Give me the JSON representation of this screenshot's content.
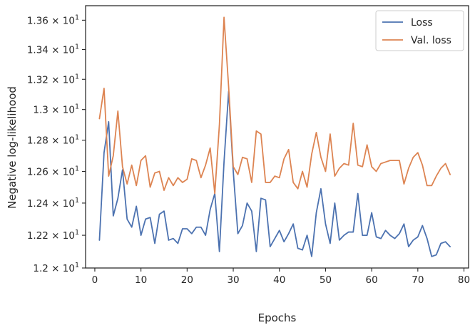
{
  "chart_data": {
    "type": "line",
    "xlabel": "Epochs",
    "ylabel": "Negative log-likelihood",
    "xlim": [
      -2,
      81
    ],
    "ylim": [
      12.0,
      13.7
    ],
    "y_scale": "log",
    "grid": false,
    "legend_position": "top-right",
    "x_ticks": [
      {
        "value": 0,
        "label": "0"
      },
      {
        "value": 10,
        "label": "10"
      },
      {
        "value": 20,
        "label": "20"
      },
      {
        "value": 30,
        "label": "30"
      },
      {
        "value": 40,
        "label": "40"
      },
      {
        "value": 50,
        "label": "50"
      },
      {
        "value": 60,
        "label": "60"
      },
      {
        "value": 70,
        "label": "70"
      },
      {
        "value": 80,
        "label": "80"
      }
    ],
    "y_ticks": [
      {
        "value": 12.0,
        "mantissa": "1.2"
      },
      {
        "value": 12.2,
        "mantissa": "1.22"
      },
      {
        "value": 12.4,
        "mantissa": "1.24"
      },
      {
        "value": 12.6,
        "mantissa": "1.26"
      },
      {
        "value": 12.8,
        "mantissa": "1.28"
      },
      {
        "value": 13.0,
        "mantissa": "1.3"
      },
      {
        "value": 13.2,
        "mantissa": "1.32"
      },
      {
        "value": 13.4,
        "mantissa": "1.34"
      },
      {
        "value": 13.6,
        "mantissa": "1.36"
      }
    ],
    "y_tick_base": "10",
    "y_tick_exponent": "1",
    "series": [
      {
        "name": "Loss",
        "color": "#4c72b0",
        "x": [
          1,
          2,
          3,
          4,
          5,
          6,
          7,
          8,
          9,
          10,
          11,
          12,
          13,
          14,
          15,
          16,
          17,
          18,
          19,
          20,
          21,
          22,
          23,
          24,
          25,
          26,
          27,
          28,
          29,
          30,
          31,
          32,
          33,
          34,
          35,
          36,
          37,
          38,
          39,
          40,
          41,
          42,
          43,
          44,
          45,
          46,
          47,
          48,
          49,
          50,
          51,
          52,
          53,
          54,
          55,
          56,
          57,
          58,
          59,
          60,
          61,
          62,
          63,
          64,
          65,
          66,
          67,
          68,
          69,
          70,
          71,
          72,
          73,
          74,
          75,
          76,
          77
        ],
        "y": [
          12.17,
          12.72,
          12.92,
          12.32,
          12.43,
          12.61,
          12.3,
          12.25,
          12.38,
          12.2,
          12.3,
          12.31,
          12.15,
          12.33,
          12.35,
          12.17,
          12.18,
          12.15,
          12.24,
          12.24,
          12.21,
          12.25,
          12.25,
          12.2,
          12.36,
          12.46,
          12.1,
          12.66,
          13.12,
          12.6,
          12.21,
          12.26,
          12.4,
          12.35,
          12.1,
          12.43,
          12.42,
          12.13,
          12.18,
          12.23,
          12.16,
          12.21,
          12.27,
          12.12,
          12.11,
          12.2,
          12.07,
          12.34,
          12.49,
          12.27,
          12.15,
          12.4,
          12.17,
          12.2,
          12.22,
          12.22,
          12.46,
          12.2,
          12.2,
          12.34,
          12.19,
          12.18,
          12.23,
          12.2,
          12.18,
          12.21,
          12.27,
          12.13,
          12.17,
          12.19,
          12.26,
          12.18,
          12.07,
          12.08,
          12.15,
          12.16,
          12.13
        ]
      },
      {
        "name": "Val. loss",
        "color": "#dd8452",
        "x": [
          1,
          2,
          3,
          4,
          5,
          6,
          7,
          8,
          9,
          10,
          11,
          12,
          13,
          14,
          15,
          16,
          17,
          18,
          19,
          20,
          21,
          22,
          23,
          24,
          25,
          26,
          27,
          28,
          29,
          30,
          31,
          32,
          33,
          34,
          35,
          36,
          37,
          38,
          39,
          40,
          41,
          42,
          43,
          44,
          45,
          46,
          47,
          48,
          49,
          50,
          51,
          52,
          53,
          54,
          55,
          56,
          57,
          58,
          59,
          60,
          61,
          62,
          63,
          64,
          65,
          66,
          67,
          68,
          69,
          70,
          71,
          72,
          73,
          74,
          75,
          76,
          77
        ],
        "y": [
          12.94,
          13.14,
          12.57,
          12.7,
          12.99,
          12.63,
          12.52,
          12.64,
          12.51,
          12.67,
          12.7,
          12.5,
          12.59,
          12.6,
          12.48,
          12.56,
          12.51,
          12.56,
          12.53,
          12.55,
          12.68,
          12.67,
          12.56,
          12.64,
          12.75,
          12.46,
          12.9,
          13.62,
          13.15,
          12.63,
          12.58,
          12.69,
          12.68,
          12.53,
          12.86,
          12.84,
          12.53,
          12.53,
          12.57,
          12.56,
          12.68,
          12.74,
          12.53,
          12.49,
          12.6,
          12.5,
          12.71,
          12.85,
          12.69,
          12.6,
          12.84,
          12.57,
          12.62,
          12.65,
          12.64,
          12.91,
          12.64,
          12.63,
          12.77,
          12.63,
          12.6,
          12.65,
          12.66,
          12.67,
          12.67,
          12.67,
          12.52,
          12.62,
          12.69,
          12.72,
          12.64,
          12.51,
          12.51,
          12.57,
          12.62,
          12.65,
          12.58
        ]
      }
    ]
  }
}
